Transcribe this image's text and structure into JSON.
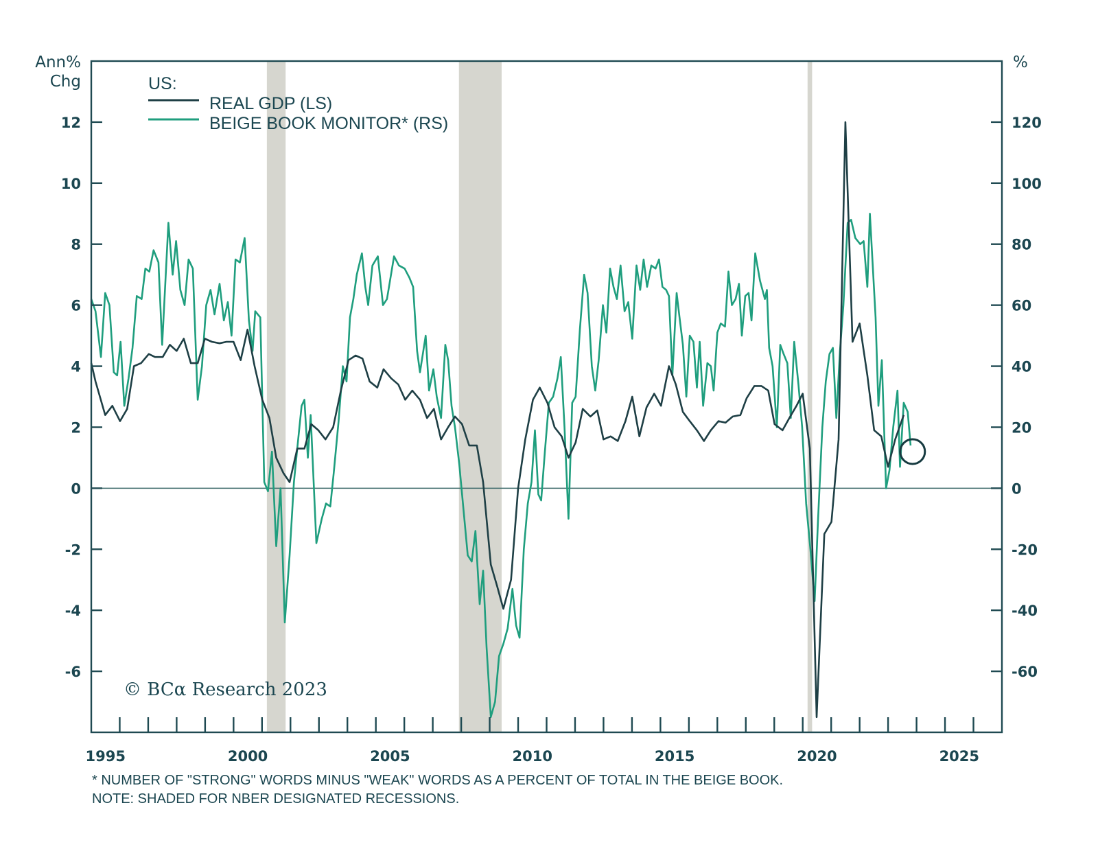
{
  "chart_data": {
    "type": "line",
    "title": "",
    "legend": {
      "heading": "US:",
      "placement": "top-left",
      "entries": [
        {
          "name": "REAL GDP (LS)",
          "color": "#1e3f45"
        },
        {
          "name": "BEIGE BOOK MONITOR* (RS)",
          "color": "#1f9e7e"
        }
      ]
    },
    "left_axis": {
      "label_line1": "Ann%",
      "label_line2": "Chg",
      "ylim": [
        -8,
        14
      ],
      "ticks": [
        -6,
        -4,
        -2,
        0,
        2,
        4,
        6,
        8,
        10,
        12
      ]
    },
    "right_axis": {
      "label": "%",
      "ylim": [
        -80,
        140
      ],
      "ticks": [
        -60,
        -40,
        -20,
        0,
        20,
        40,
        60,
        80,
        100,
        120
      ]
    },
    "x_axis": {
      "xlim": [
        1995,
        2027
      ],
      "tick_labels": [
        "1995",
        "2000",
        "2005",
        "2010",
        "2015",
        "2020",
        "2025"
      ],
      "minor_ticks": "yearly"
    },
    "recessions": [
      [
        2001.17,
        2001.83
      ],
      [
        2007.92,
        2009.42
      ],
      [
        2020.17,
        2020.33
      ]
    ],
    "annotation_circle": {
      "x": 2023.86,
      "y_rs": 12
    },
    "series": [
      {
        "name": "REAL GDP (LS)",
        "axis": "left",
        "x": [
          1995.0,
          1995.15,
          1995.49,
          1995.74,
          1996.01,
          1996.26,
          1996.5,
          1996.75,
          1997.02,
          1997.24,
          1997.51,
          1997.76,
          1998.0,
          1998.25,
          1998.5,
          1998.74,
          1998.99,
          1999.24,
          1999.51,
          1999.75,
          2000.0,
          2000.25,
          2000.49,
          2000.74,
          2001.01,
          2001.26,
          2001.5,
          2001.75,
          2001.97,
          2002.24,
          2002.49,
          2002.73,
          2002.98,
          2003.23,
          2003.5,
          2003.77,
          2004.04,
          2004.29,
          2004.53,
          2004.78,
          2005.05,
          2005.27,
          2005.54,
          2005.79,
          2006.03,
          2006.28,
          2006.55,
          2006.8,
          2007.04,
          2007.29,
          2007.54,
          2007.78,
          2008.03,
          2008.28,
          2008.55,
          2008.77,
          2009.04,
          2009.26,
          2009.48,
          2009.75,
          2010.0,
          2010.25,
          2010.52,
          2010.76,
          2011.03,
          2011.28,
          2011.53,
          2011.77,
          2012.02,
          2012.27,
          2012.54,
          2012.78,
          2013.0,
          2013.25,
          2013.5,
          2013.77,
          2014.01,
          2014.26,
          2014.51,
          2014.78,
          2015.02,
          2015.3,
          2015.54,
          2015.79,
          2016.03,
          2016.28,
          2016.53,
          2016.77,
          2017.04,
          2017.29,
          2017.54,
          2017.81,
          2018.03,
          2018.3,
          2018.55,
          2018.79,
          2019.01,
          2019.29,
          2019.53,
          2019.78,
          2020.0,
          2020.25,
          2020.49,
          2020.76,
          2021.01,
          2021.26,
          2021.5,
          2021.75,
          2022.0,
          2022.27,
          2022.51,
          2022.76,
          2023.0,
          2023.25,
          2023.55
        ],
        "values": [
          4.1,
          3.5,
          2.4,
          2.7,
          2.2,
          2.6,
          4.0,
          4.1,
          4.4,
          4.3,
          4.3,
          4.7,
          4.5,
          4.9,
          4.1,
          4.1,
          4.9,
          4.8,
          4.75,
          4.8,
          4.8,
          4.2,
          5.2,
          4.0,
          2.9,
          2.3,
          1.0,
          0.5,
          0.2,
          1.3,
          1.3,
          2.1,
          1.9,
          1.6,
          2.0,
          3.2,
          4.2,
          4.35,
          4.25,
          3.5,
          3.3,
          3.9,
          3.6,
          3.4,
          2.9,
          3.2,
          2.9,
          2.3,
          2.6,
          1.6,
          2.0,
          2.35,
          2.1,
          1.4,
          1.4,
          0.2,
          -2.5,
          -3.2,
          -3.95,
          -3.0,
          0.0,
          1.6,
          2.9,
          3.3,
          2.8,
          2.0,
          1.7,
          1.0,
          1.5,
          2.6,
          2.35,
          2.55,
          1.6,
          1.7,
          1.55,
          2.2,
          3.0,
          1.7,
          2.65,
          3.1,
          2.7,
          4.0,
          3.4,
          2.5,
          2.2,
          1.9,
          1.55,
          1.9,
          2.2,
          2.15,
          2.35,
          2.4,
          2.95,
          3.35,
          3.35,
          3.2,
          2.1,
          1.9,
          2.3,
          2.7,
          3.1,
          1.3,
          -7.5,
          -1.5,
          -1.1,
          1.6,
          12.0,
          4.8,
          5.4,
          3.7,
          1.9,
          1.7,
          0.7,
          1.6,
          2.4
        ]
      },
      {
        "name": "BEIGE BOOK MONITOR* (RS)",
        "axis": "right",
        "x": [
          1995.0,
          1995.15,
          1995.34,
          1995.49,
          1995.64,
          1995.79,
          1995.91,
          1996.03,
          1996.16,
          1996.31,
          1996.45,
          1996.6,
          1996.77,
          1996.9,
          1997.04,
          1997.19,
          1997.36,
          1997.49,
          1997.71,
          1997.86,
          1997.98,
          1998.13,
          1998.28,
          1998.42,
          1998.57,
          1998.74,
          1998.89,
          1999.04,
          1999.19,
          1999.33,
          1999.51,
          1999.66,
          1999.8,
          1999.93,
          2000.07,
          2000.22,
          2000.39,
          2000.54,
          2000.67,
          2000.76,
          2000.94,
          2001.08,
          2001.21,
          2001.35,
          2001.5,
          2001.65,
          2001.8,
          2001.97,
          2002.12,
          2002.27,
          2002.39,
          2002.49,
          2002.61,
          2002.71,
          2002.91,
          2003.1,
          2003.25,
          2003.4,
          2003.52,
          2003.69,
          2003.84,
          2003.97,
          2004.09,
          2004.21,
          2004.33,
          2004.51,
          2004.63,
          2004.73,
          2004.88,
          2005.07,
          2005.25,
          2005.39,
          2005.64,
          2005.81,
          2006.01,
          2006.18,
          2006.31,
          2006.45,
          2006.55,
          2006.75,
          2006.87,
          2007.02,
          2007.14,
          2007.29,
          2007.44,
          2007.54,
          2007.66,
          2007.78,
          2007.93,
          2008.08,
          2008.23,
          2008.37,
          2008.5,
          2008.65,
          2008.77,
          2008.89,
          2009.04,
          2009.19,
          2009.33,
          2009.48,
          2009.63,
          2009.8,
          2009.93,
          2010.05,
          2010.2,
          2010.34,
          2010.47,
          2010.59,
          2010.71,
          2010.81,
          2010.94,
          2011.08,
          2011.23,
          2011.38,
          2011.5,
          2011.63,
          2011.77,
          2011.9,
          2012.02,
          2012.17,
          2012.32,
          2012.44,
          2012.59,
          2012.71,
          2012.83,
          2012.98,
          2013.1,
          2013.23,
          2013.35,
          2013.47,
          2013.6,
          2013.74,
          2013.87,
          2014.01,
          2014.16,
          2014.29,
          2014.41,
          2014.53,
          2014.68,
          2014.83,
          2014.95,
          2015.07,
          2015.2,
          2015.3,
          2015.42,
          2015.57,
          2015.67,
          2015.79,
          2015.91,
          2016.03,
          2016.16,
          2016.28,
          2016.38,
          2016.5,
          2016.65,
          2016.77,
          2016.87,
          2017.0,
          2017.12,
          2017.27,
          2017.39,
          2017.51,
          2017.64,
          2017.76,
          2017.86,
          2017.98,
          2018.1,
          2018.2,
          2018.33,
          2018.5,
          2018.67,
          2018.74,
          2018.82,
          2018.94,
          2019.09,
          2019.21,
          2019.33,
          2019.46,
          2019.58,
          2019.7,
          2019.85,
          2019.98,
          2020.12,
          2020.27,
          2020.42,
          2020.54,
          2020.69,
          2020.81,
          2020.94,
          2021.06,
          2021.18,
          2021.31,
          2021.43,
          2021.58,
          2021.7,
          2021.85,
          2022.02,
          2022.14,
          2022.27,
          2022.36,
          2022.56,
          2022.66,
          2022.78,
          2022.93,
          2023.05,
          2023.18,
          2023.33,
          2023.42,
          2023.55,
          2023.69,
          2023.79
        ],
        "values": [
          62,
          58,
          43,
          64,
          60,
          38,
          37,
          48,
          27,
          36,
          46,
          63,
          62,
          72,
          71,
          78,
          74,
          47,
          87,
          70,
          81,
          65,
          60,
          75,
          72,
          29,
          40,
          60,
          65,
          57,
          67,
          55,
          61,
          50,
          75,
          74,
          82,
          55,
          45,
          58,
          56,
          2,
          -1,
          12,
          -19,
          0,
          -44,
          -22,
          2,
          16,
          27,
          29,
          10,
          24,
          -18,
          -10,
          -5,
          -6,
          5,
          22,
          40,
          35,
          56,
          62,
          70,
          77,
          66,
          60,
          73,
          76,
          60,
          62,
          76,
          73,
          72,
          69,
          66,
          45,
          38,
          50,
          32,
          39,
          30,
          23,
          47,
          42,
          27,
          20,
          8,
          -7,
          -22,
          -24,
          -14,
          -38,
          -27,
          -52,
          -75,
          -70,
          -55,
          -51,
          -46,
          -33,
          -45,
          -49,
          -20,
          -5,
          2,
          19,
          -2,
          -4,
          12,
          28,
          30,
          36,
          43,
          20,
          -10,
          28,
          30,
          52,
          70,
          64,
          40,
          32,
          42,
          60,
          51,
          72,
          66,
          62,
          73,
          58,
          61,
          49,
          73,
          65,
          75,
          66,
          73,
          72,
          75,
          66,
          65,
          63,
          37,
          64,
          56,
          47,
          30,
          50,
          48,
          33,
          48,
          27,
          41,
          40,
          32,
          51,
          54,
          53,
          71,
          60,
          62,
          67,
          50,
          63,
          64,
          55,
          77,
          68,
          62,
          65,
          46,
          40,
          20,
          47,
          44,
          41,
          23,
          48,
          34,
          20,
          -5,
          -20,
          -37,
          -10,
          20,
          35,
          44,
          46,
          23,
          45,
          60,
          87,
          88,
          82,
          80,
          81,
          66,
          90,
          56,
          27,
          42,
          0,
          6,
          20,
          32,
          7,
          28,
          25,
          14
        ]
      }
    ]
  },
  "axis_labels": {
    "left_unit_line1": "Ann%",
    "left_unit_line2": "Chg",
    "right_unit": "%"
  },
  "legend": {
    "heading": "US:",
    "gdp": "REAL GDP (LS)",
    "beige": "BEIGE BOOK MONITOR* (RS)"
  },
  "credit": "© BCα Research 2023",
  "footnotes": {
    "line1": "* NUMBER OF \"STRONG\" WORDS MINUS \"WEAK\" WORDS AS A PERCENT OF TOTAL IN THE BEIGE BOOK.",
    "line2": "NOTE: SHADED FOR NBER DESIGNATED RECESSIONS."
  },
  "colors": {
    "gdp": "#1e3f45",
    "beige": "#1f9e7e",
    "recession": "#d6d6cf",
    "axis": "#1f4a52"
  }
}
